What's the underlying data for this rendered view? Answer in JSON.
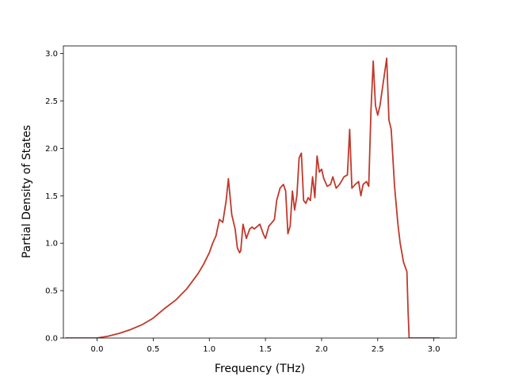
{
  "chart_data": {
    "type": "line",
    "title": "",
    "xlabel": "Frequency (THz)",
    "ylabel": "Partial Density of States",
    "xlim": [
      -0.3,
      3.2
    ],
    "ylim": [
      0.0,
      3.08
    ],
    "xticks": [
      0.0,
      0.5,
      1.0,
      1.5,
      2.0,
      2.5,
      3.0
    ],
    "xtick_labels": [
      "0.0",
      "0.5",
      "1.0",
      "1.5",
      "2.0",
      "2.5",
      "3.0"
    ],
    "yticks": [
      0.0,
      0.5,
      1.0,
      1.5,
      2.0,
      2.5,
      3.0
    ],
    "ytick_labels": [
      "0.0",
      "0.5",
      "1.0",
      "1.5",
      "2.0",
      "2.5",
      "3.0"
    ],
    "grid": false,
    "legend": "none",
    "series": [
      {
        "color": "#c0392b",
        "x": [
          -0.28,
          0.0,
          0.1,
          0.2,
          0.3,
          0.4,
          0.5,
          0.55,
          0.6,
          0.7,
          0.8,
          0.9,
          0.95,
          1.0,
          1.03,
          1.06,
          1.09,
          1.12,
          1.15,
          1.17,
          1.2,
          1.23,
          1.25,
          1.27,
          1.28,
          1.3,
          1.33,
          1.36,
          1.38,
          1.4,
          1.43,
          1.45,
          1.48,
          1.5,
          1.53,
          1.56,
          1.58,
          1.6,
          1.63,
          1.66,
          1.68,
          1.7,
          1.72,
          1.74,
          1.76,
          1.78,
          1.8,
          1.82,
          1.84,
          1.86,
          1.88,
          1.9,
          1.92,
          1.94,
          1.96,
          1.98,
          2.0,
          2.02,
          2.05,
          2.08,
          2.1,
          2.13,
          2.16,
          2.2,
          2.23,
          2.25,
          2.27,
          2.3,
          2.33,
          2.35,
          2.37,
          2.4,
          2.42,
          2.44,
          2.46,
          2.48,
          2.5,
          2.52,
          2.55,
          2.58,
          2.6,
          2.62,
          2.65,
          2.68,
          2.7,
          2.73,
          2.76,
          2.77,
          2.78,
          2.8,
          3.0,
          3.05
        ],
        "y": [
          0.0,
          0.0,
          0.02,
          0.05,
          0.09,
          0.14,
          0.21,
          0.26,
          0.31,
          0.4,
          0.52,
          0.68,
          0.78,
          0.9,
          1.0,
          1.08,
          1.25,
          1.22,
          1.45,
          1.68,
          1.3,
          1.15,
          0.95,
          0.9,
          0.92,
          1.2,
          1.05,
          1.15,
          1.17,
          1.15,
          1.18,
          1.2,
          1.1,
          1.05,
          1.18,
          1.22,
          1.25,
          1.45,
          1.58,
          1.62,
          1.55,
          1.1,
          1.18,
          1.55,
          1.35,
          1.5,
          1.9,
          1.95,
          1.45,
          1.42,
          1.48,
          1.45,
          1.7,
          1.48,
          1.92,
          1.75,
          1.78,
          1.68,
          1.6,
          1.62,
          1.7,
          1.58,
          1.62,
          1.7,
          1.72,
          2.2,
          1.58,
          1.62,
          1.65,
          1.5,
          1.62,
          1.65,
          1.6,
          2.4,
          2.92,
          2.45,
          2.35,
          2.45,
          2.7,
          2.95,
          2.3,
          2.2,
          1.6,
          1.2,
          1.0,
          0.8,
          0.7,
          0.3,
          0.0,
          0.0,
          0.0,
          0.0
        ]
      }
    ]
  }
}
